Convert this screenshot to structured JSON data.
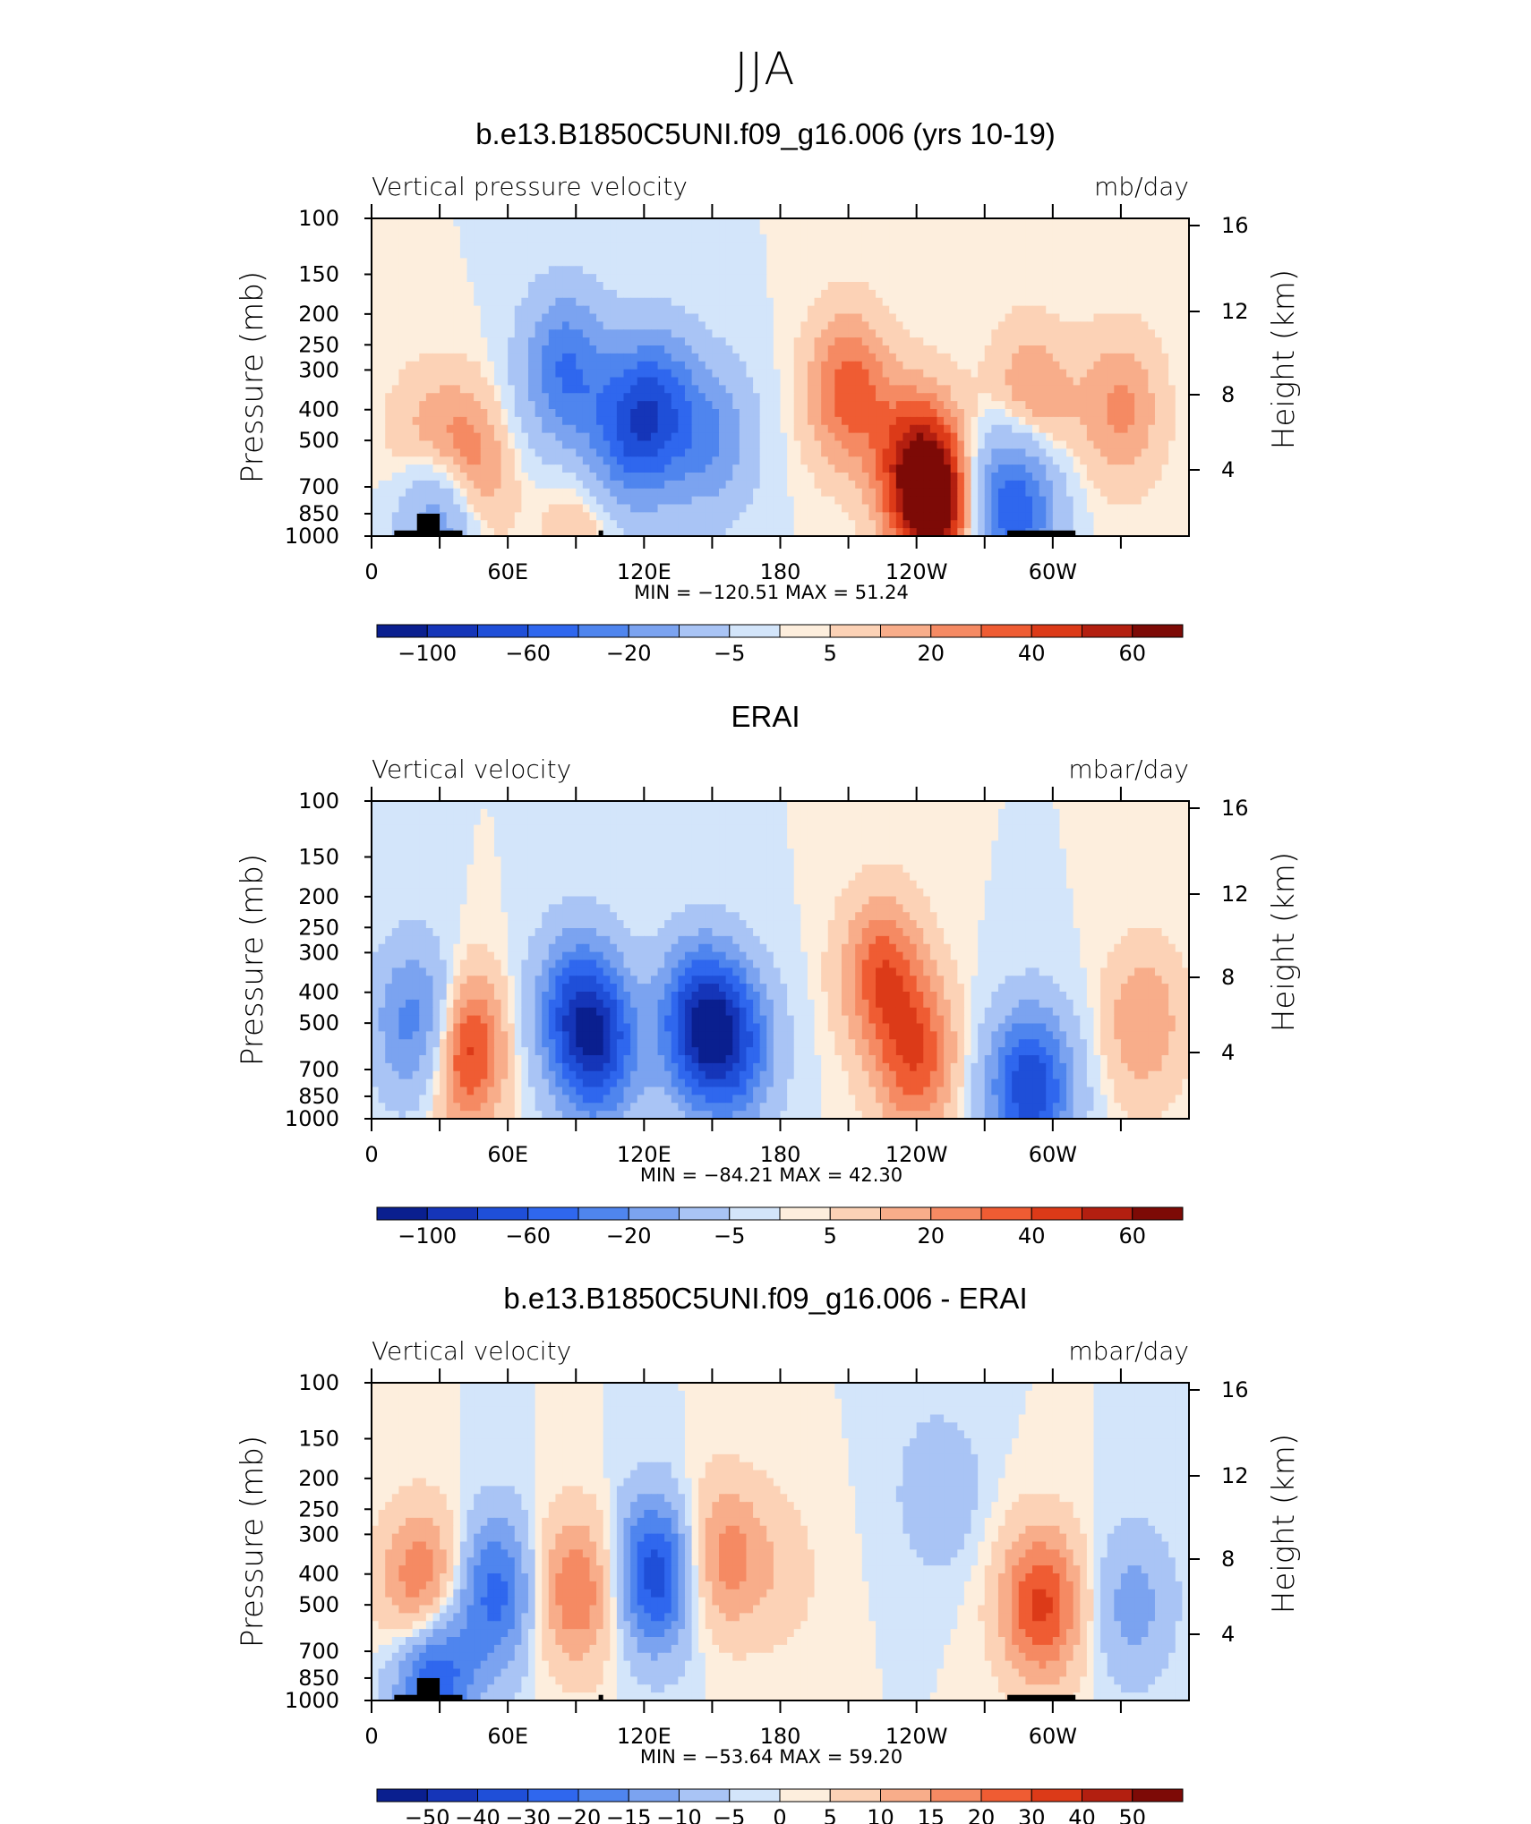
{
  "main_title": "JJA",
  "colors": {
    "scale": [
      "#0a1f8f",
      "#1535b8",
      "#1f4fd8",
      "#2f67ee",
      "#4f85ee",
      "#7ba3f0",
      "#a9c4f5",
      "#d3e5fa",
      "#fdeedd",
      "#fcd2b6",
      "#f8ad8a",
      "#f58a63",
      "#ef5c33",
      "#dc3a18",
      "#b31f10",
      "#7d0a06"
    ]
  },
  "chart_data": [
    {
      "type": "heatmap",
      "title": "b.e13.B1850C5UNI.f09_g16.006 (yrs 10-19)",
      "left_label": "Vertical pressure velocity",
      "right_label": "mb/day",
      "ylabel": "Pressure (mb)",
      "ylabel_right": "Height (km)",
      "pressure_ticks": [
        "100",
        "150",
        "200",
        "250",
        "300",
        "400",
        "500",
        "700",
        "850",
        "1000"
      ],
      "height_ticks": [
        "16",
        "12",
        "8",
        "4"
      ],
      "lon_ticks": [
        "0",
        "60E",
        "120E",
        "180",
        "120W",
        "60W"
      ],
      "min_max": "MIN = −120.51   MAX =   51.24",
      "min": -120.51,
      "max": 51.24,
      "colorbar_labels": [
        "−100",
        "−60",
        "−20",
        "−5",
        "5",
        "20",
        "40",
        "60"
      ],
      "features": [
        {
          "lon": 25,
          "p": 600,
          "v": 30
        },
        {
          "lon": 40,
          "p": 650,
          "v": 40
        },
        {
          "lon": 30,
          "p": 800,
          "v": -70
        },
        {
          "lon": 85,
          "p": 300,
          "v": -60
        },
        {
          "lon": 110,
          "p": 500,
          "v": -50
        },
        {
          "lon": 125,
          "p": 400,
          "v": -70
        },
        {
          "lon": 150,
          "p": 500,
          "v": -40
        },
        {
          "lon": 95,
          "p": 850,
          "v": 15
        },
        {
          "lon": 210,
          "p": 350,
          "v": 30
        },
        {
          "lon": 240,
          "p": 600,
          "v": 40
        },
        {
          "lon": 250,
          "p": 850,
          "v": 45
        },
        {
          "lon": 283,
          "p": 800,
          "v": -80
        },
        {
          "lon": 290,
          "p": 400,
          "v": 25
        },
        {
          "lon": 330,
          "p": 400,
          "v": 20
        }
      ]
    },
    {
      "type": "heatmap",
      "title": "ERAI",
      "left_label": "Vertical velocity",
      "right_label": "mbar/day",
      "ylabel": "Pressure (mb)",
      "ylabel_right": "Height (km)",
      "pressure_ticks": [
        "100",
        "150",
        "200",
        "250",
        "300",
        "400",
        "500",
        "700",
        "850",
        "1000"
      ],
      "height_ticks": [
        "16",
        "12",
        "8",
        "4"
      ],
      "lon_ticks": [
        "0",
        "60E",
        "120E",
        "180",
        "120W",
        "60W"
      ],
      "min_max": "MIN = −84.21   MAX =   42.30",
      "min": -84.21,
      "max": 42.3,
      "colorbar_labels": [
        "−100",
        "−60",
        "−20",
        "−5",
        "5",
        "20",
        "40",
        "60"
      ],
      "features": [
        {
          "lon": 20,
          "p": 500,
          "v": -40
        },
        {
          "lon": 40,
          "p": 600,
          "v": 35
        },
        {
          "lon": 90,
          "p": 450,
          "v": -45
        },
        {
          "lon": 100,
          "p": 600,
          "v": -55
        },
        {
          "lon": 145,
          "p": 500,
          "v": -70
        },
        {
          "lon": 160,
          "p": 600,
          "v": -45
        },
        {
          "lon": 225,
          "p": 350,
          "v": 25
        },
        {
          "lon": 240,
          "p": 650,
          "v": 25
        },
        {
          "lon": 290,
          "p": 800,
          "v": -65
        },
        {
          "lon": 340,
          "p": 500,
          "v": 15
        }
      ]
    },
    {
      "type": "heatmap",
      "title": "b.e13.B1850C5UNI.f09_g16.006 - ERAI",
      "left_label": "Vertical velocity",
      "right_label": "mbar/day",
      "ylabel": "Pressure (mb)",
      "ylabel_right": "Height (km)",
      "pressure_ticks": [
        "100",
        "150",
        "200",
        "250",
        "300",
        "400",
        "500",
        "700",
        "850",
        "1000"
      ],
      "height_ticks": [
        "16",
        "12",
        "8",
        "4"
      ],
      "lon_ticks": [
        "0",
        "60E",
        "120E",
        "180",
        "120W",
        "60W"
      ],
      "min_max": "MIN = −53.64   MAX =   59.20",
      "min": -53.64,
      "max": 59.2,
      "colorbar_labels": [
        "−50",
        "−40",
        "−30",
        "−20",
        "−15",
        "−10",
        "−5",
        "0",
        "5",
        "10",
        "15",
        "20",
        "30",
        "40",
        "50"
      ],
      "features": [
        {
          "lon": 22,
          "p": 450,
          "v": 35
        },
        {
          "lon": 27,
          "p": 800,
          "v": -40
        },
        {
          "lon": 55,
          "p": 450,
          "v": -30
        },
        {
          "lon": 90,
          "p": 450,
          "v": 30
        },
        {
          "lon": 125,
          "p": 400,
          "v": -40
        },
        {
          "lon": 155,
          "p": 350,
          "v": 25
        },
        {
          "lon": 180,
          "p": 400,
          "v": 8
        },
        {
          "lon": 250,
          "p": 220,
          "v": -10
        },
        {
          "lon": 295,
          "p": 500,
          "v": 40
        },
        {
          "lon": 335,
          "p": 500,
          "v": -15
        }
      ]
    }
  ]
}
